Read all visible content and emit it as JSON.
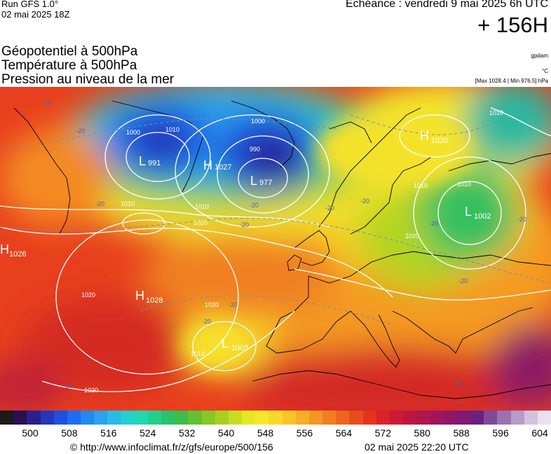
{
  "header": {
    "run": "Run GFS 1.0°",
    "run_date": "02 mai 2025 18Z",
    "echeance": "Echéance : vendredi 9 mai 2025 6h UTC",
    "lead": "+ 156H"
  },
  "titles": {
    "line1": "Géopotentiel à 500hPa",
    "line2": "Température à 500hPa",
    "line3": "Pression au niveau de la mer"
  },
  "units": {
    "geopotential": "gpdam",
    "temperature": "°C",
    "pressure_range": "[Max 1028.4 | Min 976.5] hPa"
  },
  "systems": [
    {
      "type": "L",
      "value": "991"
    },
    {
      "type": "H",
      "value": "1027"
    },
    {
      "type": "L",
      "value": "977"
    },
    {
      "type": "H",
      "value": "1020"
    },
    {
      "type": "L",
      "value": "1002"
    },
    {
      "type": "H",
      "value": "1026"
    },
    {
      "type": "H",
      "value": "1028"
    },
    {
      "type": "L",
      "value": "1003"
    }
  ],
  "isobar_labels": [
    "1000",
    "1000",
    "990",
    "1010",
    "1010",
    "1010",
    "1020",
    "1020",
    "1020",
    "1010",
    "1010",
    "1010",
    "1020",
    "1020",
    "1010"
  ],
  "temp_labels": [
    "-20",
    "-20",
    "-20",
    "-20",
    "-20",
    "-20",
    "-20",
    "-20",
    "-20",
    "-20",
    "-20",
    "-20",
    "-20",
    "-20"
  ],
  "scale": {
    "ticks": [
      "500",
      "508",
      "516",
      "524",
      "532",
      "540",
      "548",
      "556",
      "564",
      "572",
      "580",
      "588",
      "596",
      "604"
    ],
    "colors": [
      "#1a1a1a",
      "#2a1050",
      "#2b1f8c",
      "#2238b8",
      "#1d4fe0",
      "#1e6cf0",
      "#2488f0",
      "#2aa2f0",
      "#27bde6",
      "#24d0d0",
      "#22d8b0",
      "#22d08c",
      "#26c46c",
      "#3ebc4a",
      "#62c032",
      "#86c826",
      "#a8d022",
      "#c8dc22",
      "#e4e626",
      "#f4e82c",
      "#f8d82a",
      "#f8c428",
      "#f6ae26",
      "#f49624",
      "#f27e22",
      "#ee6420",
      "#ea4c1e",
      "#e4341e",
      "#da2228",
      "#cc1a34",
      "#bc1640",
      "#ae164c",
      "#a01658",
      "#901666",
      "#801874",
      "#6e2080",
      "#7e4a98",
      "#9a72b0",
      "#b89cc8",
      "#d4c2dc",
      "#ebe0ee"
    ]
  },
  "footer": {
    "url": "© http://www.infoclimat.fr/z/gfs/europe/500/156",
    "timestamp": "02 mai 2025 22:20 UTC"
  }
}
